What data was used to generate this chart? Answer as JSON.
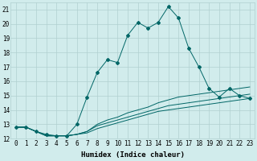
{
  "xlabel": "Humidex (Indice chaleur)",
  "ylabel": "",
  "xlim": [
    -0.5,
    23.5
  ],
  "ylim": [
    12,
    21.5
  ],
  "background_color": "#d1ecec",
  "grid_color": "#b0d0d0",
  "line_color": "#006666",
  "series": [
    [
      12.8,
      12.8,
      12.5,
      12.3,
      12.2,
      12.2,
      13.0,
      14.9,
      16.6,
      17.5,
      17.3,
      19.2,
      20.1,
      19.7,
      20.1,
      21.2,
      20.4,
      18.3,
      17.0,
      15.5,
      14.9,
      15.5,
      15.0,
      14.8
    ],
    [
      12.8,
      12.8,
      12.5,
      12.2,
      12.2,
      12.2,
      12.3,
      12.5,
      13.0,
      13.3,
      13.5,
      13.8,
      14.0,
      14.2,
      14.5,
      14.7,
      14.9,
      15.0,
      15.1,
      15.2,
      15.3,
      15.4,
      15.5,
      15.6
    ],
    [
      12.8,
      12.8,
      12.5,
      12.2,
      12.2,
      12.2,
      12.3,
      12.5,
      12.9,
      13.1,
      13.3,
      13.5,
      13.7,
      13.9,
      14.1,
      14.3,
      14.4,
      14.5,
      14.6,
      14.7,
      14.8,
      14.9,
      15.0,
      15.1
    ],
    [
      12.8,
      12.8,
      12.5,
      12.2,
      12.2,
      12.2,
      12.3,
      12.4,
      12.7,
      12.9,
      13.1,
      13.3,
      13.5,
      13.7,
      13.9,
      14.0,
      14.1,
      14.2,
      14.3,
      14.4,
      14.5,
      14.6,
      14.7,
      14.8
    ]
  ],
  "xticks": [
    0,
    1,
    2,
    3,
    4,
    5,
    6,
    7,
    8,
    9,
    10,
    11,
    12,
    13,
    14,
    15,
    16,
    17,
    18,
    19,
    20,
    21,
    22,
    23
  ],
  "yticks": [
    12,
    13,
    14,
    15,
    16,
    17,
    18,
    19,
    20,
    21
  ],
  "tick_fontsize": 5.5,
  "xlabel_fontsize": 6.5
}
